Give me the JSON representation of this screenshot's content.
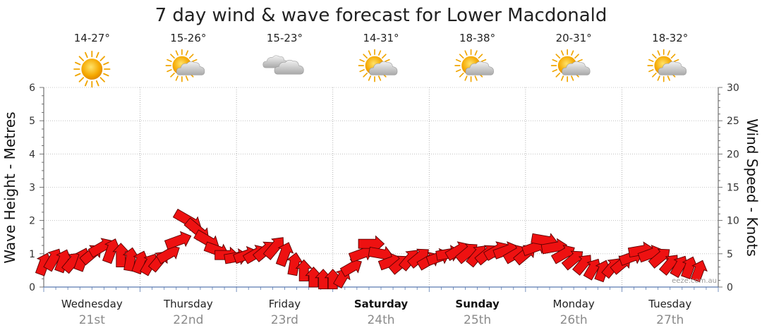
{
  "chart_data": {
    "type": "line",
    "title": "7 day wind & wave forecast for Lower Macdonald",
    "ylabel_left": "Wave Height - Metres",
    "ylabel_right": "Wind Speed - Knots",
    "ylim_left": [
      0,
      6
    ],
    "ylim_right": [
      0,
      30
    ],
    "yticks_left": [
      "0",
      "1",
      "2",
      "3",
      "4",
      "5",
      "6"
    ],
    "yticks_right": [
      "0",
      "5",
      "10",
      "15",
      "20",
      "25",
      "30"
    ],
    "grid": true,
    "days": [
      {
        "name": "Wednesday",
        "date": "21st",
        "temp": "14-27°",
        "icon": "sun-icon",
        "bold": false
      },
      {
        "name": "Thursday",
        "date": "22nd",
        "temp": "15-26°",
        "icon": "partly-cloudy-icon",
        "bold": false
      },
      {
        "name": "Friday",
        "date": "23rd",
        "temp": "15-23°",
        "icon": "cloudy-icon",
        "bold": false
      },
      {
        "name": "Saturday",
        "date": "24th",
        "temp": "14-31°",
        "icon": "partly-cloudy-icon",
        "bold": true
      },
      {
        "name": "Sunday",
        "date": "25th",
        "temp": "18-38°",
        "icon": "partly-cloudy-icon",
        "bold": true
      },
      {
        "name": "Monday",
        "date": "26th",
        "temp": "20-31°",
        "icon": "partly-cloudy-icon",
        "bold": false
      },
      {
        "name": "Tuesday",
        "date": "27th",
        "temp": "18-32°",
        "icon": "partly-cloudy-icon",
        "bold": false
      }
    ],
    "wind_series": {
      "name": "Wind Speed",
      "units": "knots",
      "color": "#ee1111",
      "x_days": [
        0,
        0.1,
        0.2,
        0.3,
        0.4,
        0.5,
        0.6,
        0.7,
        0.8,
        0.9,
        1.0,
        1.1,
        1.2,
        1.3,
        1.4,
        1.5,
        1.6,
        1.7,
        1.8,
        1.9,
        2.0,
        2.1,
        2.2,
        2.3,
        2.4,
        2.5,
        2.6,
        2.7,
        2.8,
        2.9,
        3.0,
        3.1,
        3.2,
        3.3,
        3.4,
        3.5,
        3.6,
        3.7,
        3.8,
        3.9,
        4.0,
        4.1,
        4.2,
        4.3,
        4.4,
        4.5,
        4.6,
        4.7,
        4.8,
        4.9,
        5.0,
        5.1,
        5.2,
        5.3,
        5.4,
        5.5,
        5.6,
        5.7,
        5.8,
        5.9,
        6.0,
        6.1,
        6.2,
        6.3,
        6.4,
        6.5,
        6.6,
        6.7,
        6.8
      ],
      "values": [
        3.5,
        4.2,
        4.0,
        3.8,
        4.2,
        5.0,
        6.0,
        5.5,
        4.8,
        4.2,
        3.8,
        3.5,
        4.0,
        5.0,
        7.0,
        10.0,
        8.5,
        7.0,
        5.5,
        4.8,
        4.5,
        4.8,
        5.0,
        5.5,
        6.0,
        5.0,
        3.5,
        2.5,
        1.5,
        1.2,
        1.2,
        1.5,
        3.0,
        5.0,
        6.5,
        5.0,
        3.8,
        3.5,
        4.2,
        4.5,
        4.0,
        4.5,
        5.0,
        5.5,
        5.2,
        4.8,
        5.0,
        5.5,
        5.5,
        5.0,
        5.0,
        6.0,
        7.0,
        6.0,
        5.0,
        4.2,
        3.5,
        2.8,
        2.5,
        3.0,
        3.5,
        4.5,
        5.5,
        5.0,
        4.5,
        3.5,
        3.2,
        3.0,
        2.5
      ],
      "directions_deg": [
        200,
        210,
        200,
        220,
        200,
        230,
        240,
        200,
        180,
        190,
        200,
        210,
        220,
        240,
        250,
        300,
        310,
        300,
        290,
        270,
        260,
        250,
        240,
        230,
        220,
        200,
        190,
        180,
        180,
        180,
        180,
        210,
        240,
        250,
        270,
        280,
        250,
        230,
        220,
        230,
        240,
        250,
        260,
        240,
        230,
        220,
        230,
        240,
        250,
        240,
        230,
        250,
        280,
        260,
        240,
        230,
        220,
        210,
        200,
        220,
        230,
        250,
        260,
        250,
        230,
        220,
        210,
        200,
        200
      ]
    },
    "credit": "eeze.com.au"
  }
}
